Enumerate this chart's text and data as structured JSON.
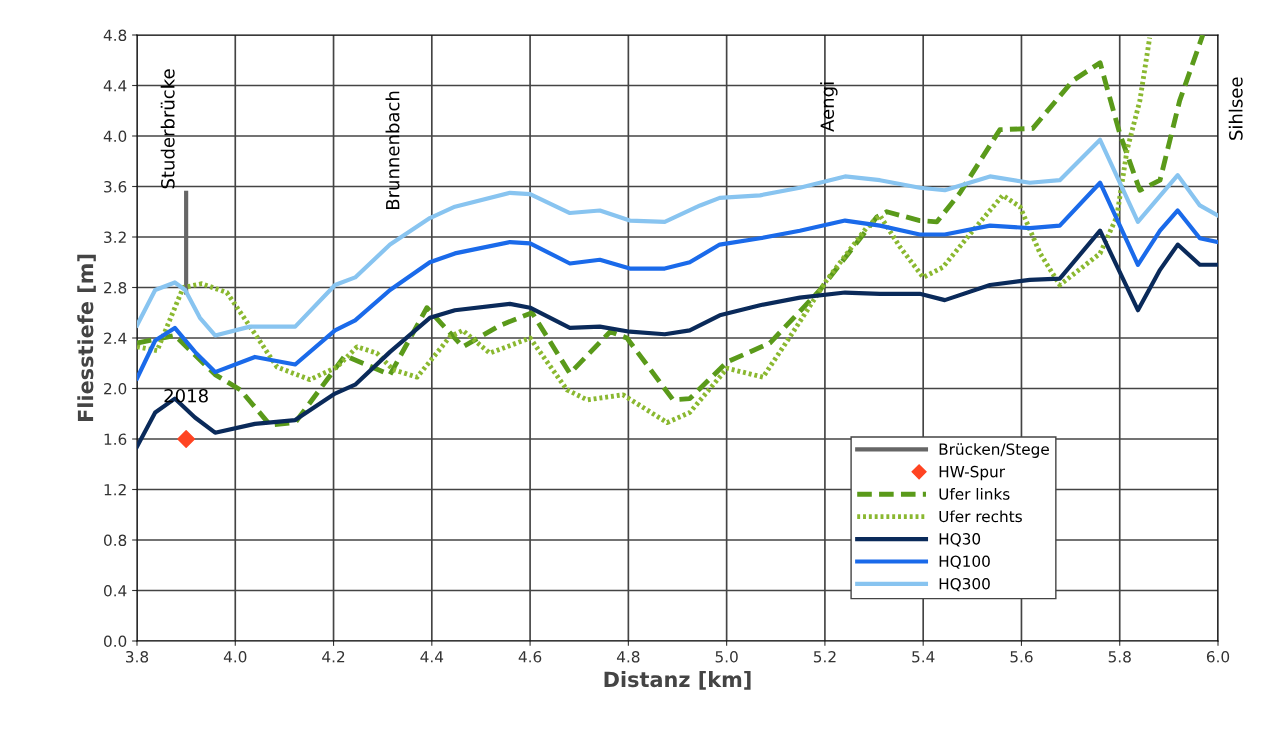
{
  "chart_data": {
    "type": "line",
    "xlabel": "Distanz [km]",
    "ylabel": "Fliesstiefe [m]",
    "xlim": [
      3.8,
      6.0
    ],
    "xticks": [
      {
        "value": 3.8,
        "label": "3.8"
      },
      {
        "value": 4.0,
        "label": "4.0"
      },
      {
        "value": 4.2,
        "label": "4.2"
      },
      {
        "value": 4.4,
        "label": "4.4"
      },
      {
        "value": 4.6,
        "label": "4.6"
      },
      {
        "value": 4.8,
        "label": "4.8"
      },
      {
        "value": 5.0,
        "label": "5.0"
      },
      {
        "value": 5.2,
        "label": "5.2"
      },
      {
        "value": 5.4,
        "label": "5.4"
      },
      {
        "value": 5.6,
        "label": "5.6"
      },
      {
        "value": 5.8,
        "label": "5.8"
      },
      {
        "value": 6.0,
        "label": "6.0"
      }
    ],
    "ylim": [
      0,
      4.8
    ],
    "yticks": [
      {
        "value": 0,
        "label": "0.0"
      },
      {
        "value": 0.4,
        "label": "0.4"
      },
      {
        "value": 0.8,
        "label": "0.8"
      },
      {
        "value": 1.2,
        "label": "1.2"
      },
      {
        "value": 1.6,
        "label": "1.6"
      },
      {
        "value": 2.0,
        "label": "2.0"
      },
      {
        "value": 2.4,
        "label": "2.4"
      },
      {
        "value": 2.8,
        "label": "2.8"
      },
      {
        "value": 3.2,
        "label": "3.2"
      },
      {
        "value": 3.6,
        "label": "3.6"
      },
      {
        "value": 4.0,
        "label": "4.0"
      },
      {
        "value": 4.4,
        "label": "4.4"
      },
      {
        "value": 4.8,
        "label": "4.8"
      }
    ],
    "grid": true,
    "legend": "bottom right",
    "series": [
      {
        "name": "Brücken/Stege",
        "color": "#666666",
        "line_style": "solid",
        "x": [
          3.9,
          3.9
        ],
        "values": [
          2.76,
          3.55
        ]
      },
      {
        "name": "HW-Spur",
        "type": "scatter",
        "color": "#ff4422",
        "marker": "diamond",
        "x": [
          3.9
        ],
        "values": [
          1.6
        ]
      },
      {
        "name": "Ufer links",
        "color": "#5a9a1a",
        "line_style": "dashed",
        "x": [
          3.8,
          3.877,
          3.959,
          4.01,
          4.071,
          4.122,
          4.223,
          4.315,
          4.39,
          4.463,
          4.539,
          4.604,
          4.681,
          4.763,
          4.797,
          4.891,
          4.925,
          5.001,
          5.088,
          5.19,
          5.306,
          5.326,
          5.393,
          5.428,
          5.475,
          5.556,
          5.623,
          5.705,
          5.76,
          5.8,
          5.841,
          5.882,
          5.922,
          5.969
        ],
        "values": [
          2.36,
          2.42,
          2.11,
          1.99,
          1.71,
          1.73,
          2.26,
          2.11,
          2.64,
          2.33,
          2.5,
          2.6,
          2.12,
          2.45,
          2.4,
          1.91,
          1.92,
          2.21,
          2.36,
          2.78,
          3.36,
          3.4,
          3.33,
          3.32,
          3.55,
          4.05,
          4.06,
          4.44,
          4.58,
          4.02,
          3.57,
          3.65,
          4.28,
          4.8
        ]
      },
      {
        "name": "Ufer rechts",
        "color": "#8ab830",
        "line_style": "dotted",
        "x": [
          3.8,
          3.841,
          3.894,
          3.932,
          3.983,
          4.044,
          4.085,
          4.152,
          4.207,
          4.248,
          4.288,
          4.321,
          4.37,
          4.437,
          4.463,
          4.518,
          4.6,
          4.675,
          4.716,
          4.789,
          4.879,
          4.925,
          5.001,
          5.074,
          5.129,
          5.204,
          5.286,
          5.312,
          5.353,
          5.4,
          5.44,
          5.501,
          5.562,
          5.597,
          5.638,
          5.678,
          5.76,
          5.794,
          5.815,
          5.841,
          5.861
        ],
        "values": [
          2.33,
          2.3,
          2.8,
          2.83,
          2.76,
          2.41,
          2.17,
          2.07,
          2.17,
          2.33,
          2.28,
          2.15,
          2.09,
          2.41,
          2.46,
          2.28,
          2.4,
          1.99,
          1.91,
          1.95,
          1.73,
          1.81,
          2.16,
          2.09,
          2.41,
          2.86,
          3.28,
          3.37,
          3.12,
          2.88,
          2.96,
          3.25,
          3.53,
          3.44,
          3.07,
          2.82,
          3.07,
          3.36,
          3.89,
          4.28,
          4.78
        ]
      },
      {
        "name": "HQ30",
        "color": "#0a2a5a",
        "line_style": "solid",
        "x": [
          3.8,
          3.837,
          3.877,
          3.918,
          3.959,
          4.04,
          4.122,
          4.203,
          4.244,
          4.315,
          4.396,
          4.447,
          4.559,
          4.6,
          4.681,
          4.742,
          4.803,
          4.874,
          4.925,
          4.986,
          5.068,
          5.149,
          5.241,
          5.312,
          5.393,
          5.444,
          5.536,
          5.617,
          5.678,
          5.76,
          5.837,
          5.882,
          5.918,
          5.963,
          6.0
        ],
        "values": [
          1.54,
          1.81,
          1.92,
          1.77,
          1.65,
          1.72,
          1.75,
          1.96,
          2.03,
          2.29,
          2.56,
          2.62,
          2.67,
          2.64,
          2.48,
          2.49,
          2.45,
          2.43,
          2.46,
          2.58,
          2.66,
          2.72,
          2.76,
          2.75,
          2.75,
          2.7,
          2.82,
          2.86,
          2.87,
          3.25,
          2.62,
          2.94,
          3.14,
          2.98,
          2.98
        ]
      },
      {
        "name": "HQ100",
        "color": "#1a6aea",
        "line_style": "solid",
        "x": [
          3.8,
          3.837,
          3.877,
          3.918,
          3.959,
          4.04,
          4.122,
          4.203,
          4.244,
          4.315,
          4.396,
          4.447,
          4.559,
          4.6,
          4.681,
          4.742,
          4.803,
          4.874,
          4.925,
          4.986,
          5.068,
          5.149,
          5.241,
          5.312,
          5.393,
          5.444,
          5.536,
          5.617,
          5.678,
          5.76,
          5.837,
          5.882,
          5.918,
          5.963,
          6.0
        ],
        "values": [
          2.08,
          2.38,
          2.48,
          2.29,
          2.13,
          2.25,
          2.19,
          2.46,
          2.54,
          2.78,
          3.0,
          3.07,
          3.16,
          3.15,
          2.99,
          3.02,
          2.95,
          2.95,
          3.0,
          3.14,
          3.19,
          3.25,
          3.33,
          3.29,
          3.22,
          3.22,
          3.29,
          3.27,
          3.29,
          3.63,
          2.98,
          3.25,
          3.41,
          3.19,
          3.16
        ]
      },
      {
        "name": "HQ300",
        "color": "#88c4f0",
        "line_style": "solid",
        "x": [
          3.8,
          3.837,
          3.877,
          3.898,
          3.928,
          3.959,
          4.03,
          4.122,
          4.203,
          4.244,
          4.315,
          4.396,
          4.447,
          4.559,
          4.6,
          4.681,
          4.742,
          4.803,
          4.874,
          4.946,
          4.986,
          5.068,
          5.149,
          5.241,
          5.312,
          5.393,
          5.444,
          5.536,
          5.617,
          5.678,
          5.76,
          5.837,
          5.918,
          5.963,
          6.0
        ],
        "values": [
          2.5,
          2.78,
          2.84,
          2.78,
          2.56,
          2.42,
          2.49,
          2.49,
          2.82,
          2.88,
          3.14,
          3.35,
          3.44,
          3.55,
          3.54,
          3.39,
          3.41,
          3.33,
          3.32,
          3.45,
          3.51,
          3.53,
          3.59,
          3.68,
          3.65,
          3.59,
          3.57,
          3.68,
          3.63,
          3.65,
          3.97,
          3.32,
          3.69,
          3.45,
          3.37
        ]
      }
    ],
    "annotations": [
      "Studerbrücke",
      "Brunnenbach",
      "Aengi",
      "Sihlsee",
      {
        "text": "2018",
        "x": 3.9,
        "y": 1.6
      }
    ]
  }
}
